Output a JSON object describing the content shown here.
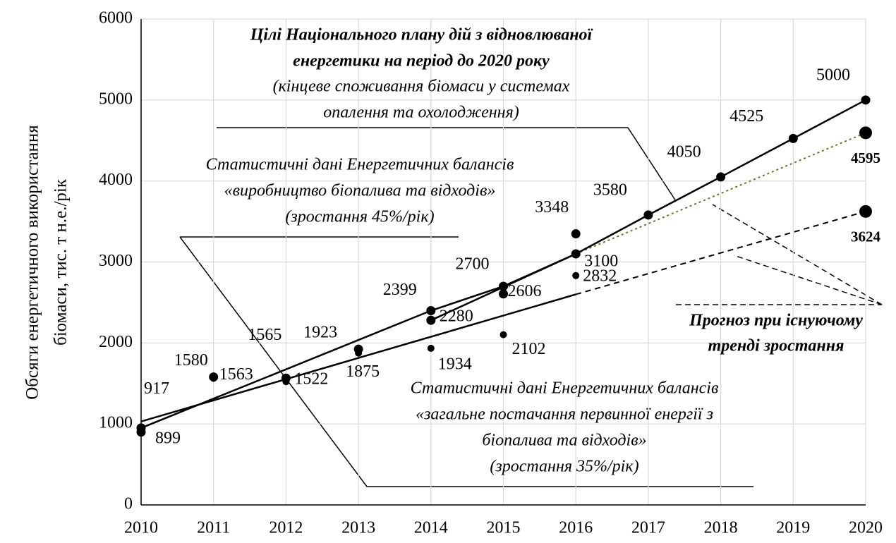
{
  "chart_data": {
    "type": "scatter",
    "y_label": [
      "Обсяги енергетичного використання",
      "біомаси,  тис. т н.е./рік"
    ],
    "xlim": [
      2010,
      2020
    ],
    "xticks": [
      2010,
      2011,
      2012,
      2013,
      2014,
      2015,
      2016,
      2017,
      2018,
      2019,
      2020
    ],
    "ylim": [
      0,
      6000
    ],
    "yticks": [
      0,
      1000,
      2000,
      3000,
      4000,
      5000,
      6000
    ],
    "grid": true,
    "series": [
      {
        "name": "plan",
        "color": "#000000",
        "line": true,
        "x": [
          2010,
          2014,
          2015,
          2016,
          2017,
          2018,
          2019,
          2020
        ],
        "values": [
          950,
          2399,
          2700,
          3100,
          3580,
          4050,
          4525,
          5000
        ],
        "labeled": [
          false,
          true,
          true,
          true,
          true,
          true,
          true,
          true
        ]
      },
      {
        "name": "production",
        "color": "#000000",
        "line": false,
        "x": [
          2010,
          2011,
          2012,
          2013,
          2014,
          2015,
          2016
        ],
        "values": [
          899,
          1580,
          1565,
          1923,
          2280,
          2606,
          3348
        ],
        "labeled": [
          true,
          true,
          true,
          true,
          true,
          true,
          true
        ]
      },
      {
        "name": "supply",
        "color": "#000000",
        "line": false,
        "x": [
          2010,
          2011,
          2012,
          2013,
          2014,
          2015,
          2016
        ],
        "values": [
          917,
          1563,
          1522,
          1875,
          1934,
          2102,
          2832
        ],
        "labeled": [
          true,
          true,
          true,
          true,
          true,
          true,
          true
        ]
      }
    ],
    "trends": [
      {
        "x": [
          2014,
          2016
        ],
        "values": [
          2280,
          3100
        ],
        "color": "#000000",
        "dash": "none"
      },
      {
        "x": [
          2010,
          2016
        ],
        "values": [
          1030,
          2600
        ],
        "color": "#000000",
        "dash": "none"
      },
      {
        "x": [
          2016,
          2020
        ],
        "values": [
          3100,
          4595
        ],
        "color": "#5b7a2e",
        "dash": "3 4",
        "end_label": true
      },
      {
        "x": [
          2016,
          2020
        ],
        "values": [
          2600,
          3624
        ],
        "color": "#000000",
        "dash": "8 6",
        "end_label": true
      }
    ],
    "annotations": {
      "plan": [
        "Цілі Національного плану дій з відновлюваної",
        "енергетики на період до 2020 року"
      ],
      "plan_sub": [
        "(кінцеве споживання біомаси у системах",
        "опалення та охолодження)"
      ],
      "production": [
        "Статистичні дані Енергетичних балансів",
        "«виробництво біопалива та відходів»",
        "(зростання 45%/рік)"
      ],
      "supply": [
        "Статистичні дані Енергетичних балансів",
        "«загальне постачання первинної енергії з",
        "біопалива та відходів»",
        "(зростання 35%/рік)"
      ],
      "forecast": [
        "Прогноз при існуючому",
        "тренді зростання"
      ]
    }
  }
}
